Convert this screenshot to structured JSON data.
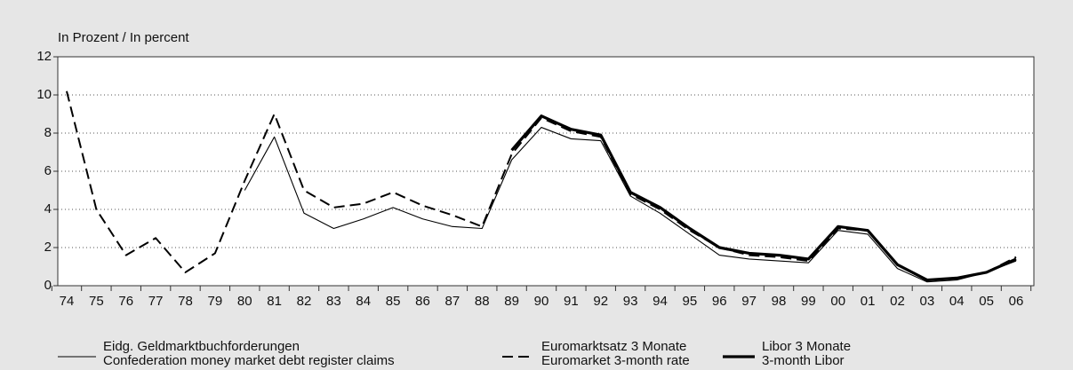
{
  "chart_data": {
    "type": "line",
    "y_label": "In Prozent / In percent",
    "categories": [
      "74",
      "75",
      "76",
      "77",
      "78",
      "79",
      "80",
      "81",
      "82",
      "83",
      "84",
      "85",
      "86",
      "87",
      "88",
      "89",
      "90",
      "91",
      "92",
      "93",
      "94",
      "95",
      "96",
      "97",
      "98",
      "99",
      "00",
      "01",
      "02",
      "03",
      "04",
      "05",
      "06"
    ],
    "ylim": [
      0,
      12
    ],
    "yticks": [
      0,
      2,
      4,
      6,
      8,
      10,
      12
    ],
    "grid": true,
    "series": [
      {
        "name": "Eidg. Geldmarktbuchforderungen",
        "name_en": "Confederation money market debt register claims",
        "color": "#000000",
        "style": "thin",
        "values": [
          null,
          null,
          null,
          null,
          null,
          null,
          5.0,
          7.8,
          3.8,
          3.0,
          3.5,
          4.1,
          3.5,
          3.1,
          3.0,
          6.6,
          8.3,
          7.7,
          7.6,
          4.7,
          3.8,
          2.7,
          1.6,
          1.4,
          1.3,
          1.2,
          2.9,
          2.7,
          0.9,
          0.2,
          0.3,
          0.7,
          1.3
        ]
      },
      {
        "name": "Euromarktsatz 3 Monate",
        "name_en": "Euromarket 3-month rate",
        "color": "#000000",
        "style": "dashed",
        "values": [
          10.2,
          4.0,
          1.6,
          2.5,
          0.7,
          1.7,
          5.5,
          9.0,
          5.0,
          4.1,
          4.3,
          4.9,
          4.2,
          3.7,
          3.1,
          6.9,
          8.8,
          8.1,
          7.8,
          4.8,
          4.0,
          2.9,
          2.0,
          1.6,
          1.5,
          1.3,
          3.0,
          2.9,
          1.1,
          0.3,
          0.4,
          0.7,
          1.5
        ]
      },
      {
        "name": "Libor 3 Monate",
        "name_en": "3-month Libor",
        "color": "#000000",
        "style": "thick",
        "values": [
          null,
          null,
          null,
          null,
          null,
          null,
          null,
          null,
          null,
          null,
          null,
          null,
          null,
          null,
          null,
          7.1,
          8.9,
          8.2,
          7.9,
          4.9,
          4.1,
          3.0,
          2.0,
          1.7,
          1.6,
          1.4,
          3.1,
          2.9,
          1.1,
          0.3,
          0.4,
          0.7,
          1.4
        ]
      }
    ]
  }
}
